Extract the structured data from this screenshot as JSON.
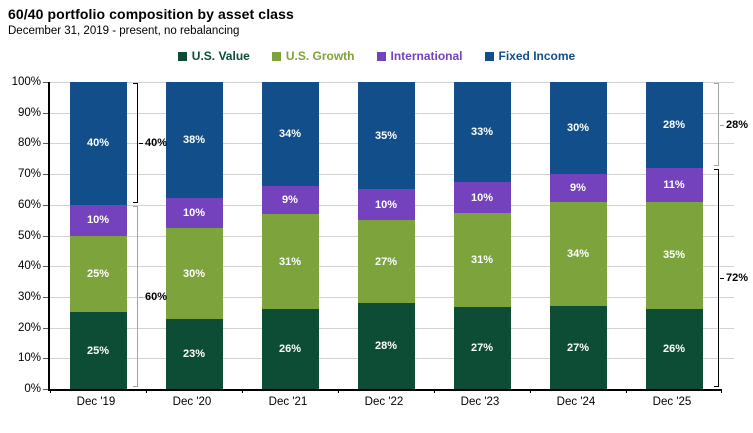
{
  "header": {
    "title": "60/40 portfolio composition by asset class",
    "subtitle": "December 31, 2019 - present, no rebalancing"
  },
  "colors": {
    "us_value": "#0d4d36",
    "us_growth": "#7da33c",
    "international": "#7442bd",
    "fixed_income": "#124f8a",
    "gridline": "#d2d2d2",
    "bracket_black": "#000000",
    "bracket_gray": "#a3a3a3"
  },
  "chart_data": {
    "type": "bar",
    "stacked": true,
    "title": "60/40 portfolio composition by asset class",
    "subtitle": "December 31, 2019 - present, no rebalancing",
    "categories": [
      "Dec '19",
      "Dec '20",
      "Dec '21",
      "Dec '22",
      "Dec '23",
      "Dec '24",
      "Dec '25"
    ],
    "series": [
      {
        "name": "U.S. Value",
        "color": "#0d4d36",
        "values": [
          25,
          23,
          26,
          28,
          27,
          27,
          26
        ]
      },
      {
        "name": "U.S. Growth",
        "color": "#7da33c",
        "values": [
          25,
          30,
          31,
          27,
          31,
          34,
          35
        ]
      },
      {
        "name": "International",
        "color": "#7442bd",
        "values": [
          10,
          10,
          9,
          10,
          10,
          9,
          11
        ]
      },
      {
        "name": "Fixed Income",
        "color": "#124f8a",
        "values": [
          40,
          38,
          34,
          35,
          33,
          30,
          28
        ]
      }
    ],
    "ylim": [
      0,
      100
    ],
    "ytick_step": 10,
    "y_tick_labels": [
      "0%",
      "10%",
      "20%",
      "30%",
      "40%",
      "50%",
      "60%",
      "70%",
      "80%",
      "90%",
      "100%"
    ],
    "grid": true,
    "legend_position": "top",
    "data_label_suffix": "%",
    "annotations": [
      {
        "side": "left",
        "label": "40%",
        "from": 60,
        "to": 100,
        "style": "black"
      },
      {
        "side": "left",
        "label": "60%",
        "from": 0,
        "to": 60,
        "style": "gray"
      },
      {
        "side": "right",
        "label": "28%",
        "from": 72,
        "to": 100,
        "style": "gray"
      },
      {
        "side": "right",
        "label": "72%",
        "from": 0,
        "to": 72,
        "style": "black"
      }
    ]
  }
}
